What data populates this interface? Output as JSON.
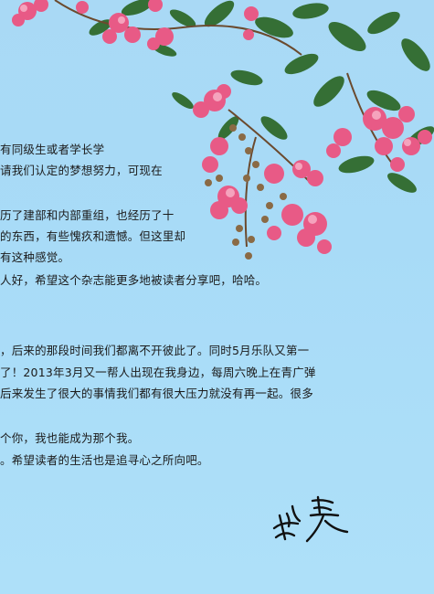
{
  "letter": {
    "lines": [
      "有同级生或者学长学",
      "请我们认定的梦想努力，可现在",
      "历了建部和内部重组，也经历了十",
      "的东西，有些愧疚和遗憾。但这里却",
      "有这种感觉。",
      "人好，希望这个杂志能更多地被读者分享吧，哈哈。",
      "，后来的那段时间我们都离不开彼此了。同时5月乐队又第一",
      "了！2013年3月又一帮人出现在我身边，每周六晚上在青广弹",
      "后来发生了很大的事情我们都有很大压力就没有再一起。很多",
      "个你，我也能成为那个我。",
      "。希望读者的生活也是追寻心之所向吧。"
    ]
  },
  "signature": {
    "text": "蔡昊"
  }
}
